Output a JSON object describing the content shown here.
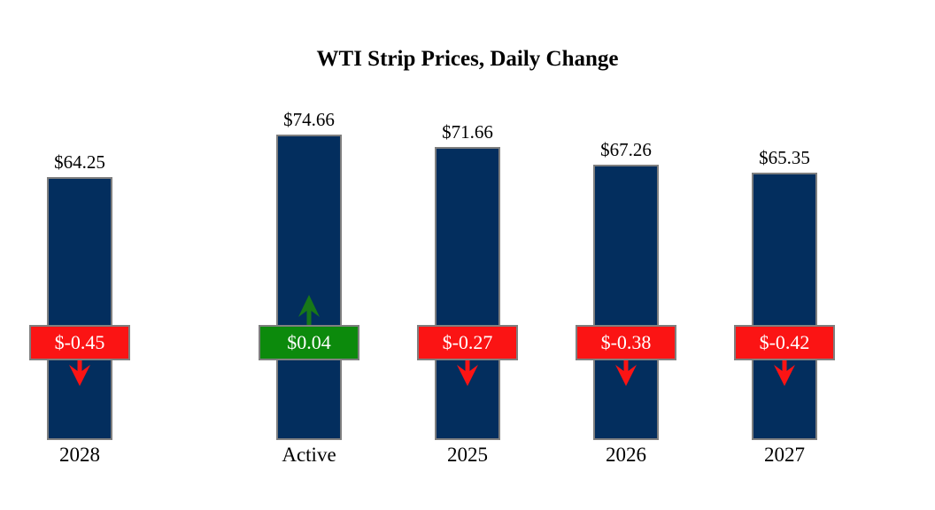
{
  "chart_data": {
    "type": "bar",
    "title": "WTI Strip Prices, Daily Change",
    "categories": [
      "Active",
      "2025",
      "2026",
      "2027",
      "2028"
    ],
    "values": [
      74.66,
      71.66,
      67.26,
      65.35,
      64.25
    ],
    "value_labels": [
      "$74.66",
      "$71.66",
      "$67.26",
      "$65.35",
      "$64.25"
    ],
    "changes": [
      0.04,
      -0.27,
      -0.38,
      -0.42,
      -0.45
    ],
    "change_labels": [
      "$0.04",
      "$-0.27",
      "$-0.38",
      "$-0.42",
      "$-0.45"
    ],
    "xlabel": "",
    "ylabel": "",
    "ylim": [
      0,
      74.66
    ],
    "grid": false,
    "legend": "none",
    "bar_color": "#032e5e",
    "bar_border_color": "#7f7f7f",
    "up_color": "#0c8a0c",
    "down_color": "#fb1414",
    "arrow_up_color": "#187818",
    "arrow_down_color": "#fb1414",
    "background_color": "#ffffff"
  }
}
